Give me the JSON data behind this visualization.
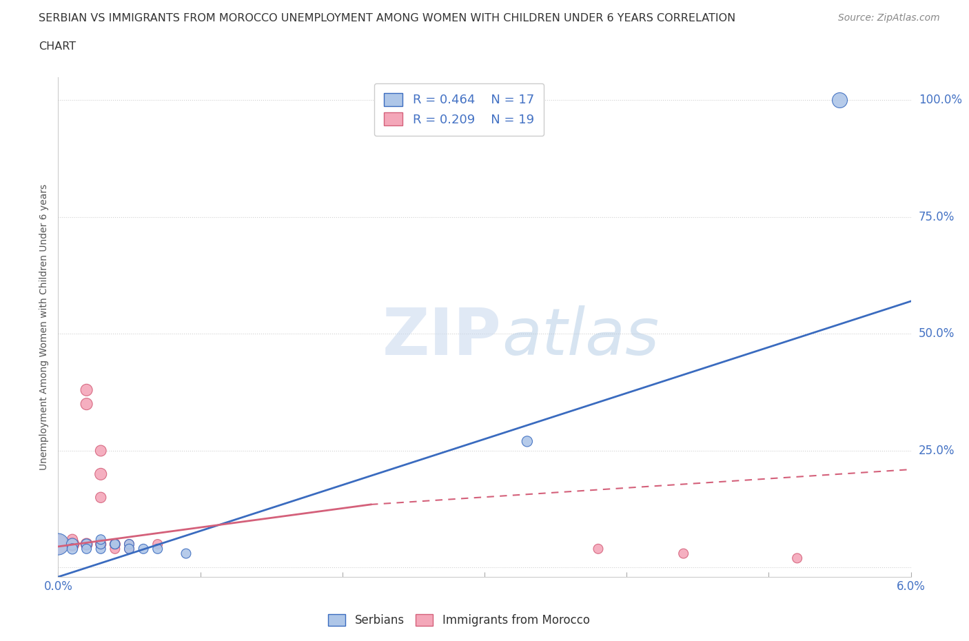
{
  "title_line1": "SERBIAN VS IMMIGRANTS FROM MOROCCO UNEMPLOYMENT AMONG WOMEN WITH CHILDREN UNDER 6 YEARS CORRELATION",
  "title_line2": "CHART",
  "source_text": "Source: ZipAtlas.com",
  "ylabel": "Unemployment Among Women with Children Under 6 years",
  "xlim": [
    0.0,
    0.06
  ],
  "ylim": [
    -0.02,
    1.05
  ],
  "xticks": [
    0.0,
    0.01,
    0.02,
    0.03,
    0.04,
    0.05,
    0.06
  ],
  "ytick_positions": [
    0.0,
    0.25,
    0.5,
    0.75,
    1.0
  ],
  "yticklabels": [
    "",
    "25.0%",
    "50.0%",
    "75.0%",
    "100.0%"
  ],
  "grid_color": "#d0d0d0",
  "background_color": "#ffffff",
  "watermark_zip": "ZIP",
  "watermark_atlas": "atlas",
  "serbian_color": "#aec6e8",
  "morocco_color": "#f4a7b9",
  "serbian_line_color": "#3a6bbf",
  "morocco_line_color": "#d4607a",
  "R_serbian": 0.464,
  "N_serbian": 17,
  "R_morocco": 0.209,
  "N_morocco": 19,
  "serbian_points": [
    [
      0.0,
      0.05
    ],
    [
      0.001,
      0.05
    ],
    [
      0.001,
      0.04
    ],
    [
      0.002,
      0.05
    ],
    [
      0.002,
      0.04
    ],
    [
      0.003,
      0.04
    ],
    [
      0.003,
      0.05
    ],
    [
      0.003,
      0.06
    ],
    [
      0.004,
      0.05
    ],
    [
      0.004,
      0.05
    ],
    [
      0.005,
      0.05
    ],
    [
      0.005,
      0.04
    ],
    [
      0.006,
      0.04
    ],
    [
      0.007,
      0.04
    ],
    [
      0.009,
      0.03
    ],
    [
      0.033,
      0.27
    ],
    [
      0.055,
      1.0
    ]
  ],
  "morocco_points": [
    [
      0.0,
      0.05
    ],
    [
      0.001,
      0.05
    ],
    [
      0.001,
      0.05
    ],
    [
      0.001,
      0.06
    ],
    [
      0.002,
      0.05
    ],
    [
      0.002,
      0.35
    ],
    [
      0.002,
      0.38
    ],
    [
      0.003,
      0.2
    ],
    [
      0.003,
      0.25
    ],
    [
      0.003,
      0.15
    ],
    [
      0.003,
      0.05
    ],
    [
      0.004,
      0.05
    ],
    [
      0.004,
      0.04
    ],
    [
      0.005,
      0.05
    ],
    [
      0.005,
      0.04
    ],
    [
      0.007,
      0.05
    ],
    [
      0.038,
      0.04
    ],
    [
      0.044,
      0.03
    ],
    [
      0.052,
      0.02
    ]
  ],
  "serbian_size": [
    500,
    150,
    120,
    120,
    100,
    100,
    100,
    100,
    100,
    100,
    100,
    100,
    100,
    100,
    100,
    120,
    250
  ],
  "morocco_size": [
    400,
    200,
    150,
    120,
    150,
    150,
    150,
    150,
    130,
    120,
    120,
    120,
    100,
    100,
    100,
    100,
    100,
    100,
    100
  ],
  "serbian_line": {
    "x0": 0.0,
    "y0": -0.02,
    "x1": 0.06,
    "y1": 0.57
  },
  "morocco_line_solid": {
    "x0": 0.0,
    "y0": 0.045,
    "x1": 0.022,
    "y1": 0.135
  },
  "morocco_line_dashed": {
    "x0": 0.022,
    "y0": 0.135,
    "x1": 0.06,
    "y1": 0.21
  }
}
